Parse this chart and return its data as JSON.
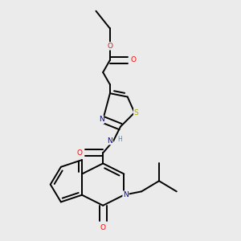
{
  "bg_color": "#ebebeb",
  "atom_colors": {
    "C": "#000000",
    "N": "#0000cc",
    "O": "#ff0000",
    "S": "#aaaa00",
    "H": "#6080a0"
  },
  "figsize": [
    3.0,
    3.0
  ],
  "dpi": 100
}
